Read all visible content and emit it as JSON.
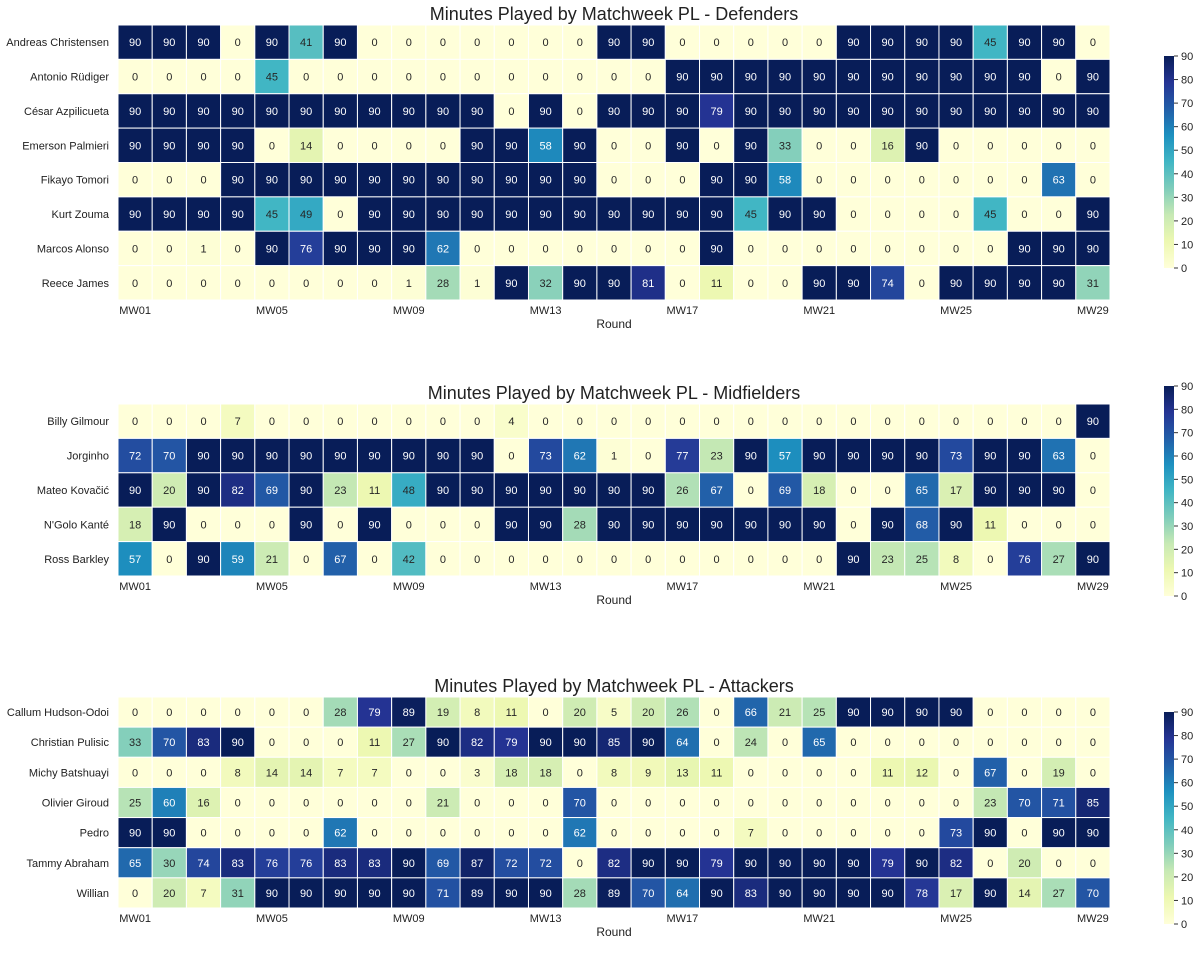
{
  "chart_data": [
    {
      "type": "heatmap",
      "title": "Minutes Played by Matchweek PL - Defenders",
      "xlabel": "Round",
      "x_tick_labels": [
        "MW01",
        "MW05",
        "MW09",
        "MW13",
        "MW17",
        "MW21",
        "MW25",
        "MW29"
      ],
      "rows": [
        "Andreas Christensen",
        "Antonio Rüdiger",
        "César Azpilicueta",
        "Emerson Palmieri",
        "Fikayo Tomori",
        "Kurt Zouma",
        "Marcos Alonso",
        "Reece James"
      ],
      "values": [
        [
          90,
          90,
          90,
          0,
          90,
          41,
          90,
          0,
          0,
          0,
          0,
          0,
          0,
          0,
          90,
          90,
          0,
          0,
          0,
          0,
          0,
          90,
          90,
          90,
          90,
          45,
          90,
          90,
          0
        ],
        [
          0,
          0,
          0,
          0,
          45,
          0,
          0,
          0,
          0,
          0,
          0,
          0,
          0,
          0,
          0,
          0,
          90,
          90,
          90,
          90,
          90,
          90,
          90,
          90,
          90,
          90,
          90,
          0,
          90
        ],
        [
          90,
          90,
          90,
          90,
          90,
          90,
          90,
          90,
          90,
          90,
          90,
          0,
          90,
          0,
          90,
          90,
          90,
          79,
          90,
          90,
          90,
          90,
          90,
          90,
          90,
          90,
          90,
          90,
          90
        ],
        [
          90,
          90,
          90,
          90,
          0,
          14,
          0,
          0,
          0,
          0,
          90,
          90,
          58,
          90,
          0,
          0,
          90,
          0,
          90,
          33,
          0,
          0,
          16,
          90,
          0,
          0,
          0,
          0,
          0
        ],
        [
          0,
          0,
          0,
          90,
          90,
          90,
          90,
          90,
          90,
          90,
          90,
          90,
          90,
          90,
          0,
          0,
          0,
          90,
          90,
          58,
          0,
          0,
          0,
          0,
          0,
          0,
          0,
          63,
          0
        ],
        [
          90,
          90,
          90,
          90,
          45,
          49,
          0,
          90,
          90,
          90,
          90,
          90,
          90,
          90,
          90,
          90,
          90,
          90,
          45,
          90,
          90,
          0,
          0,
          0,
          0,
          45,
          0,
          0,
          90
        ],
        [
          0,
          0,
          1,
          0,
          90,
          76,
          90,
          90,
          90,
          62,
          0,
          0,
          0,
          0,
          0,
          0,
          0,
          90,
          0,
          0,
          0,
          0,
          0,
          0,
          0,
          0,
          90,
          90,
          90
        ],
        [
          0,
          0,
          0,
          0,
          0,
          0,
          0,
          0,
          1,
          28,
          1,
          90,
          32,
          90,
          90,
          81,
          0,
          11,
          0,
          0,
          90,
          90,
          74,
          0,
          90,
          90,
          90,
          90,
          31
        ]
      ],
      "colorbar": {
        "min": 0,
        "max": 90,
        "ticks": [
          0,
          10,
          20,
          30,
          40,
          50,
          60,
          70,
          80,
          90
        ]
      }
    },
    {
      "type": "heatmap",
      "title": "Minutes Played by Matchweek PL - Midfielders",
      "xlabel": "Round",
      "x_tick_labels": [
        "MW01",
        "MW05",
        "MW09",
        "MW13",
        "MW17",
        "MW21",
        "MW25",
        "MW29"
      ],
      "rows": [
        "Billy Gilmour",
        "Jorginho",
        "Mateo Kovačić",
        "N'Golo Kanté",
        "Ross Barkley"
      ],
      "values": [
        [
          0,
          0,
          0,
          7,
          0,
          0,
          0,
          0,
          0,
          0,
          0,
          4,
          0,
          0,
          0,
          0,
          0,
          0,
          0,
          0,
          0,
          0,
          0,
          0,
          0,
          0,
          0,
          0,
          90
        ],
        [
          72,
          70,
          90,
          90,
          90,
          90,
          90,
          90,
          90,
          90,
          90,
          0,
          73,
          62,
          1,
          0,
          77,
          23,
          90,
          57,
          90,
          90,
          90,
          90,
          73,
          90,
          90,
          63,
          0
        ],
        [
          90,
          20,
          90,
          82,
          69,
          90,
          23,
          11,
          48,
          90,
          90,
          90,
          90,
          90,
          90,
          90,
          26,
          67,
          0,
          69,
          18,
          0,
          0,
          65,
          17,
          90,
          90,
          90,
          0
        ],
        [
          18,
          90,
          0,
          0,
          0,
          90,
          0,
          90,
          0,
          0,
          0,
          90,
          90,
          28,
          90,
          90,
          90,
          90,
          90,
          90,
          90,
          0,
          90,
          68,
          90,
          11,
          0,
          0,
          0
        ],
        [
          57,
          0,
          90,
          59,
          21,
          0,
          67,
          0,
          42,
          0,
          0,
          0,
          0,
          0,
          0,
          0,
          0,
          0,
          0,
          0,
          0,
          90,
          23,
          25,
          8,
          0,
          76,
          27,
          90
        ]
      ],
      "colorbar": {
        "min": 0,
        "max": 90,
        "ticks": [
          0,
          10,
          20,
          30,
          40,
          50,
          60,
          70,
          80,
          90
        ]
      }
    },
    {
      "type": "heatmap",
      "title": "Minutes Played by Matchweek PL - Attackers",
      "xlabel": "Round",
      "x_tick_labels": [
        "MW01",
        "MW05",
        "MW09",
        "MW13",
        "MW17",
        "MW21",
        "MW25",
        "MW29"
      ],
      "rows": [
        "Callum Hudson-Odoi",
        "Christian Pulisic",
        "Michy Batshuayi",
        "Olivier Giroud",
        "Pedro",
        "Tammy Abraham",
        "Willian"
      ],
      "values": [
        [
          0,
          0,
          0,
          0,
          0,
          0,
          28,
          79,
          89,
          19,
          8,
          11,
          0,
          20,
          5,
          20,
          26,
          0,
          66,
          21,
          25,
          90,
          90,
          90,
          90,
          0,
          0,
          0,
          0
        ],
        [
          33,
          70,
          83,
          90,
          0,
          0,
          0,
          11,
          27,
          90,
          82,
          79,
          90,
          90,
          85,
          90,
          64,
          0,
          24,
          0,
          65,
          0,
          0,
          0,
          0,
          0,
          0,
          0,
          0
        ],
        [
          0,
          0,
          0,
          8,
          14,
          14,
          7,
          7,
          0,
          0,
          3,
          18,
          18,
          0,
          8,
          9,
          13,
          11,
          0,
          0,
          0,
          0,
          11,
          12,
          0,
          67,
          0,
          19,
          0
        ],
        [
          25,
          60,
          16,
          0,
          0,
          0,
          0,
          0,
          0,
          21,
          0,
          0,
          0,
          70,
          0,
          0,
          0,
          0,
          0,
          0,
          0,
          0,
          0,
          0,
          0,
          23,
          70,
          71,
          85
        ],
        [
          90,
          90,
          0,
          0,
          0,
          0,
          62,
          0,
          0,
          0,
          0,
          0,
          0,
          62,
          0,
          0,
          0,
          0,
          7,
          0,
          0,
          0,
          0,
          0,
          73,
          90,
          0,
          90,
          90
        ],
        [
          65,
          30,
          74,
          83,
          76,
          76,
          83,
          83,
          90,
          69,
          87,
          72,
          72,
          0,
          82,
          90,
          90,
          79,
          90,
          90,
          90,
          90,
          79,
          90,
          82,
          0,
          20,
          0,
          0
        ],
        [
          0,
          20,
          7,
          31,
          90,
          90,
          90,
          90,
          90,
          71,
          89,
          90,
          90,
          28,
          89,
          70,
          64,
          90,
          83,
          90,
          90,
          90,
          90,
          78,
          17,
          90,
          14,
          27,
          70
        ]
      ],
      "colorbar": {
        "min": 0,
        "max": 90,
        "ticks": [
          0,
          10,
          20,
          30,
          40,
          50,
          60,
          70,
          80,
          90
        ]
      }
    }
  ]
}
